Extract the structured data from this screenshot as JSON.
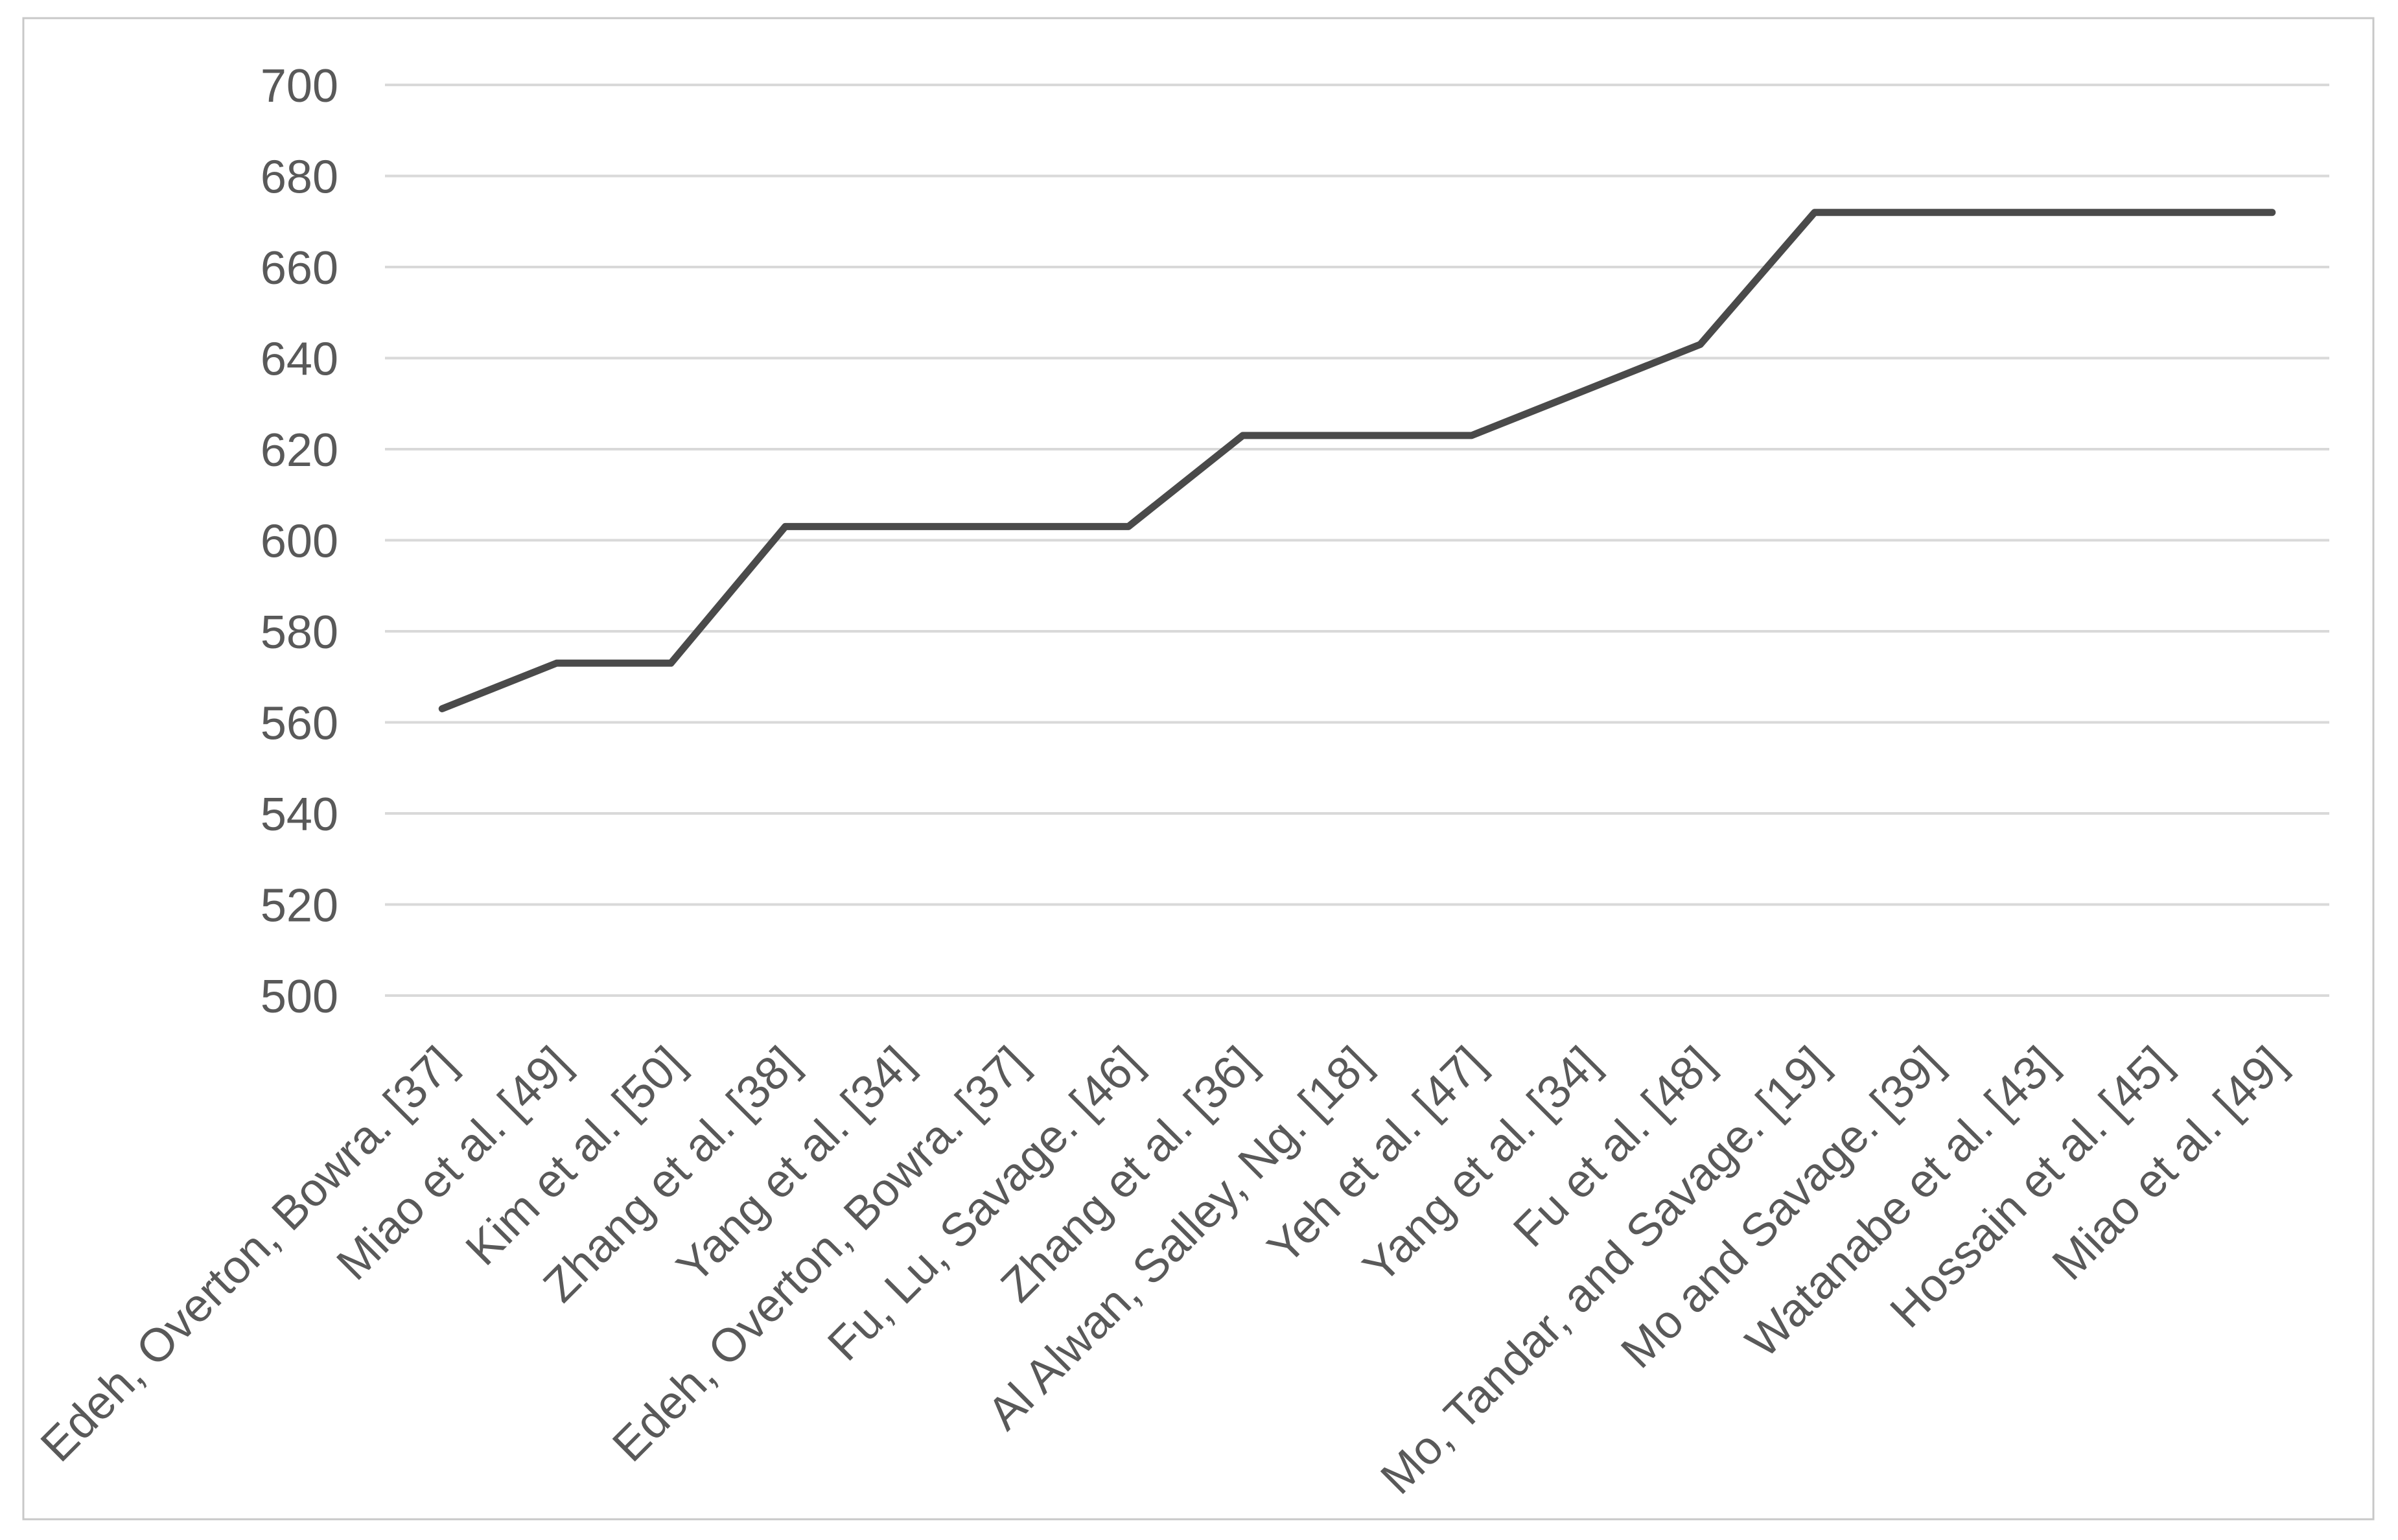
{
  "chart_data": {
    "type": "line",
    "title": "",
    "categories": [
      "Edeh, Overton, Bowra. [37]",
      "Miao et al. [49]",
      "Kim et al. [50]",
      "Zhang et al. [38]",
      "Yang et al. [34]",
      "Edeh, Overton, Bowra. [37]",
      "Fu, Lu, Savage. [46]",
      "Zhang et al. [36]",
      "Al Alwan, Salley, Ng. [18]",
      "Yeh et al. [47]",
      "Yang et al. [34]",
      "Fu et al. [48]",
      "Mo, Tandar, and Savage. [19]",
      "Mo and Savage. [39]",
      "Watanabe et al. [43]",
      "Hossain et al. [45]",
      "Miao et al. [49]"
    ],
    "values": [
      563,
      573,
      573,
      603,
      603,
      603,
      603,
      623,
      623,
      623,
      633,
      643,
      672,
      672,
      672,
      672,
      672
    ],
    "xlabel": "",
    "ylabel": "",
    "ylim": [
      500,
      700
    ],
    "ytick_step": 20,
    "yticks": [
      500,
      520,
      540,
      560,
      580,
      600,
      620,
      640,
      660,
      680,
      700
    ],
    "grid": true,
    "legend_position": "none",
    "x_label_rotation_deg": 45,
    "colors": {
      "line": "#4a4a4a",
      "grid": "#d9d9d9",
      "labels": "#595959",
      "border": "#c8c8c8",
      "background": "#ffffff"
    }
  }
}
